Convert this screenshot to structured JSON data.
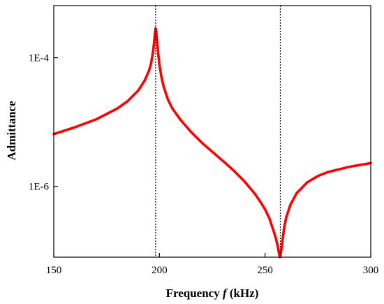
{
  "chart_data": {
    "type": "line",
    "title": "",
    "xlabel_prefix": "Frequency ",
    "xlabel_var": "f",
    "xlabel_suffix": " (kHz)",
    "ylabel": "Admittance",
    "xlim": [
      150,
      300
    ],
    "ylim_log10": [
      -7.1,
      -3.19
    ],
    "yscale": "log",
    "grid": false,
    "legend": "none",
    "x_ticks": [
      150,
      200,
      250,
      300
    ],
    "x_tick_labels": [
      "150",
      "200",
      "250",
      "300"
    ],
    "y_ticks": [
      0.0001,
      1e-06
    ],
    "y_tick_labels": [
      "1E-4",
      "1E-6"
    ],
    "vertical_markers": [
      198.2,
      257.2
    ],
    "series": [
      {
        "color": "#ff0000",
        "x": [
          150,
          160,
          170,
          180,
          185,
          190,
          193,
          195,
          196,
          197,
          197.5,
          198,
          198.2,
          198.5,
          199,
          199.5,
          200,
          201,
          202,
          204,
          206,
          210,
          215,
          220,
          225,
          230,
          235,
          240,
          245,
          248,
          250,
          252,
          254,
          255,
          256,
          256.5,
          257,
          257.2,
          257.5,
          258,
          258.5,
          259,
          260,
          262,
          265,
          270,
          275,
          280,
          290,
          300
        ],
        "y": [
          6.5e-06,
          8.3e-06,
          1.1e-05,
          1.62e-05,
          2.12e-05,
          3.1e-05,
          4.4e-05,
          6.2e-05,
          8e-05,
          0.000125,
          0.000175,
          0.00026,
          0.000285,
          0.00025,
          0.00016,
          0.00011,
          7.8e-05,
          4.9e-05,
          3.55e-05,
          2.25e-05,
          1.65e-05,
          1.08e-05,
          7e-06,
          4.8e-06,
          3.45e-06,
          2.5e-06,
          1.78e-06,
          1.22e-06,
          7.8e-07,
          5.6e-07,
          4.4e-07,
          3.2e-07,
          2.05e-07,
          1.6e-07,
          1.18e-07,
          9.5e-08,
          8e-08,
          8.1e-08,
          9.5e-08,
          1.25e-07,
          1.7e-07,
          2.25e-07,
          3.3e-07,
          5.2e-07,
          7.9e-07,
          1.16e-06,
          1.45e-06,
          1.68e-06,
          2.02e-06,
          2.3e-06
        ]
      }
    ]
  }
}
